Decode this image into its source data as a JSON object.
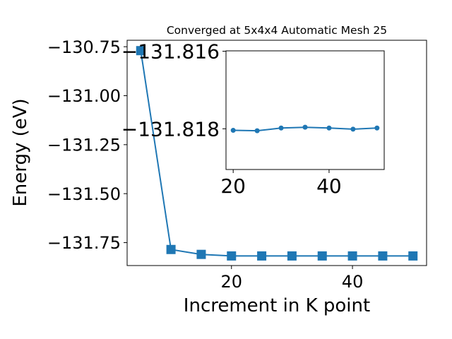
{
  "chart_data": [
    {
      "type": "line",
      "title": "Converged at 5x4x4 Automatic Mesh 25",
      "xlabel": "Increment in K point",
      "ylabel": "Energy (eV)",
      "x": [
        5,
        10,
        15,
        20,
        25,
        30,
        35,
        40,
        45,
        50
      ],
      "series": [
        {
          "values": [
            -130.77,
            -131.785,
            -131.81,
            -131.818,
            -131.818,
            -131.818,
            -131.818,
            -131.818,
            -131.818,
            -131.818
          ],
          "color": "#1f77b4",
          "marker": "square"
        }
      ],
      "xlim": [
        2.75,
        52.25
      ],
      "ylim": [
        -131.867,
        -130.717
      ],
      "xticks": [
        20,
        40
      ],
      "yticks": [
        -131.75,
        -131.5,
        -131.25,
        -131.0,
        -130.75
      ],
      "ytick_labels": [
        "−131.75",
        "−131.50",
        "−131.25",
        "−131.00",
        "−130.75"
      ],
      "grid": false
    },
    {
      "type": "line",
      "title": "",
      "xlabel": "",
      "ylabel": "",
      "x": [
        20,
        25,
        30,
        35,
        40,
        45,
        50
      ],
      "series": [
        {
          "values": [
            -131.81804,
            -131.81805,
            -131.81798,
            -131.81796,
            -131.81798,
            -131.81801,
            -131.81798
          ],
          "color": "#1f77b4",
          "marker": "circle"
        }
      ],
      "xlim": [
        18.5,
        51.5
      ],
      "ylim": [
        -131.81905,
        -131.81599
      ],
      "xticks": [
        20,
        40
      ],
      "yticks": [
        -131.818,
        -131.816
      ],
      "ytick_labels": [
        "−131.818",
        "−131.816"
      ],
      "grid": false
    }
  ]
}
